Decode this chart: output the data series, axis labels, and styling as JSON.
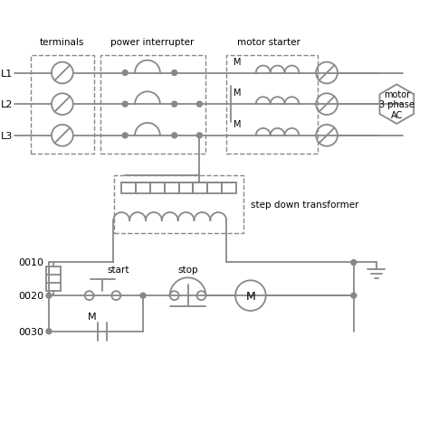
{
  "bg_color": "#ffffff",
  "line_color": "#888888",
  "text_color": "#000000",
  "labels": {
    "terminals": "terminals",
    "power_interrupter": "power interrupter",
    "motor_starter": "motor starter",
    "step_down": "step down transformer",
    "L1": "L1",
    "L2": "L2",
    "L3": "L3",
    "motor": "motor\n3 phase\nAC",
    "start": "start",
    "stop": "stop",
    "M_label": "M",
    "rung0010": "0010",
    "rung0020": "0020",
    "rung0030": "0030"
  }
}
